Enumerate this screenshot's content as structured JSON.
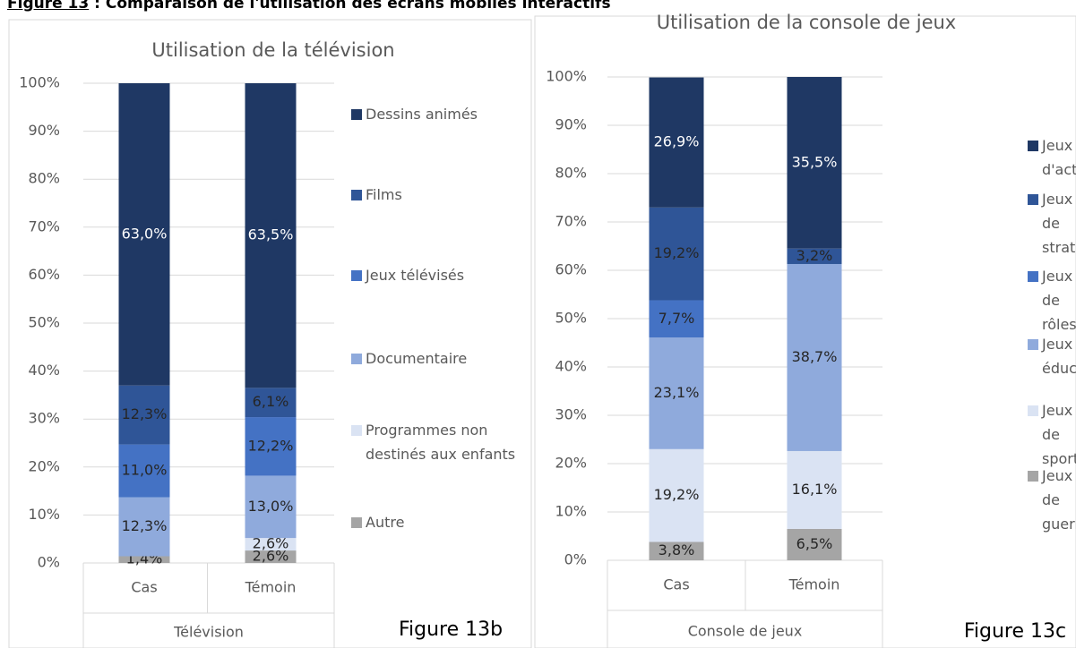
{
  "header": {
    "label": "Figure 13",
    "title": ": Comparaison de l'utilisation des écrans mobiles interactifs"
  },
  "chart_data": [
    {
      "type": "bar",
      "stacked": true,
      "title": "Utilisation de la télévision",
      "categories": [
        "Cas",
        "Témoin"
      ],
      "group_label": "Télévision",
      "figure_label": "Figure 13b",
      "ylim": [
        0,
        100
      ],
      "yticks": [
        {
          "value": 0,
          "label": "0%"
        },
        {
          "value": 10,
          "label": "10%"
        },
        {
          "value": 20,
          "label": "20%"
        },
        {
          "value": 30,
          "label": "30%"
        },
        {
          "value": 40,
          "label": "40%"
        },
        {
          "value": 50,
          "label": "50%"
        },
        {
          "value": 60,
          "label": "60%"
        },
        {
          "value": 70,
          "label": "70%"
        },
        {
          "value": 80,
          "label": "80%"
        },
        {
          "value": 90,
          "label": "90%"
        },
        {
          "value": 100,
          "label": "100%"
        }
      ],
      "grid": true,
      "series": [
        {
          "name": "Autre",
          "color": "#a5a5a5",
          "values": [
            1.4,
            2.6
          ],
          "value_labels": [
            "1,4%",
            "2,6%"
          ]
        },
        {
          "name": "Programmes non destinés aux enfants",
          "color": "#dae3f3",
          "values": [
            null,
            2.6
          ],
          "value_labels": [
            null,
            "2,6%"
          ]
        },
        {
          "name": "Documentaire",
          "color": "#8faadc",
          "values": [
            12.3,
            13.0
          ],
          "value_labels": [
            "12,3%",
            "13,0%"
          ]
        },
        {
          "name": "Jeux télévisés",
          "color": "#4472c4",
          "values": [
            11.0,
            12.2
          ],
          "value_labels": [
            "11,0%",
            "12,2%"
          ]
        },
        {
          "name": "Films",
          "color": "#2f5597",
          "values": [
            12.3,
            6.1
          ],
          "value_labels": [
            "12,3%",
            "6,1%"
          ]
        },
        {
          "name": "Dessins animés",
          "color": "#1f3864",
          "values": [
            63.0,
            63.5
          ],
          "value_labels": [
            "63,0%",
            "63,5%"
          ]
        }
      ]
    },
    {
      "type": "bar",
      "stacked": true,
      "title": "Utilisation de la console de jeux",
      "categories": [
        "Cas",
        "Témoin"
      ],
      "group_label": "Console de jeux",
      "figure_label": "Figure 13c",
      "ylim": [
        0,
        100
      ],
      "yticks": [
        {
          "value": 0,
          "label": "0%"
        },
        {
          "value": 10,
          "label": "10%"
        },
        {
          "value": 20,
          "label": "20%"
        },
        {
          "value": 30,
          "label": "30%"
        },
        {
          "value": 40,
          "label": "40%"
        },
        {
          "value": 50,
          "label": "50%"
        },
        {
          "value": 60,
          "label": "60%"
        },
        {
          "value": 70,
          "label": "70%"
        },
        {
          "value": 80,
          "label": "80%"
        },
        {
          "value": 90,
          "label": "90%"
        },
        {
          "value": 100,
          "label": "100%"
        }
      ],
      "grid": true,
      "series": [
        {
          "name": "Jeux de guerre",
          "color": "#a5a5a5",
          "values": [
            3.8,
            6.5
          ],
          "value_labels": [
            "3,8%",
            "6,5%"
          ]
        },
        {
          "name": "Jeux de sport",
          "color": "#dae3f3",
          "values": [
            19.2,
            16.1
          ],
          "value_labels": [
            "19,2%",
            "16,1%"
          ]
        },
        {
          "name": "Jeux éducatifs",
          "color": "#8faadc",
          "values": [
            23.1,
            38.7
          ],
          "value_labels": [
            "23,1%",
            "38,7%"
          ]
        },
        {
          "name": "Jeux de rôles",
          "color": "#4472c4",
          "values": [
            7.7,
            null
          ],
          "value_labels": [
            "7,7%",
            null
          ]
        },
        {
          "name": "Jeux de stratégies",
          "color": "#2f5597",
          "values": [
            19.2,
            3.2
          ],
          "value_labels": [
            "19,2%",
            "3,2%"
          ]
        },
        {
          "name": "Jeux d'actions",
          "color": "#1f3864",
          "values": [
            26.9,
            35.5
          ],
          "value_labels": [
            "26,9%",
            "35,5%"
          ]
        }
      ]
    }
  ]
}
